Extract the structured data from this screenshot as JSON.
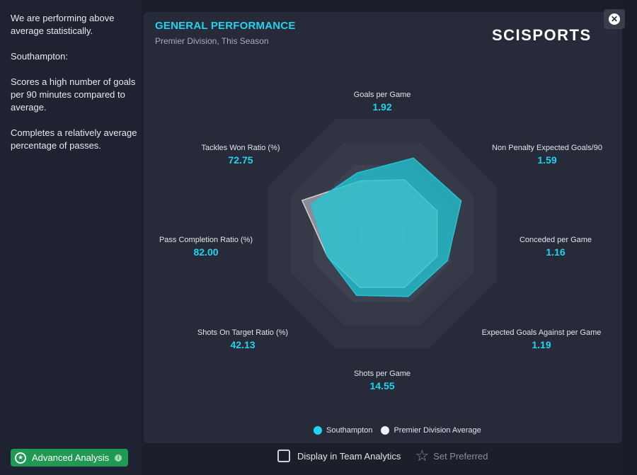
{
  "summary": {
    "para1": "We are performing above average statistically.",
    "para2": "Southampton:",
    "para3": "Scores a high number of goals per 90 minutes compared to average.",
    "para4": "Completes a relatively average percentage of passes."
  },
  "advanced_analysis": {
    "label": "Advanced Analysis"
  },
  "card": {
    "title": "GENERAL PERFORMANCE",
    "subtitle": "Premier Division, This Season",
    "logo": "SCISPORTS"
  },
  "chart_data": {
    "type": "radar",
    "axes": [
      {
        "label": "Goals per Game",
        "value": "1.92"
      },
      {
        "label": "Non Penalty Expected Goals/90",
        "value": "1.59"
      },
      {
        "label": "Conceded per Game",
        "value": "1.16"
      },
      {
        "label": "Expected Goals Against per Game",
        "value": "1.19"
      },
      {
        "label": "Shots per Game",
        "value": "14.55"
      },
      {
        "label": "Shots On Target Ratio (%)",
        "value": "42.13"
      },
      {
        "label": "Pass Completion Ratio (%)",
        "value": "82.00"
      },
      {
        "label": "Tackles Won Ratio (%)",
        "value": "72.75"
      }
    ],
    "series": [
      {
        "name": "Southampton",
        "color": "#22c4d3",
        "values": [
          0.66,
          0.69,
          0.57,
          0.55,
          0.54,
          0.48,
          0.62,
          0.53
        ]
      },
      {
        "name": "Premier Division Average",
        "color": "#d0d2d8",
        "values": [
          0.47,
          0.48,
          0.48,
          0.47,
          0.47,
          0.48,
          0.7,
          0.46
        ]
      }
    ]
  },
  "legend": {
    "series1": "Southampton",
    "series2": "Premier Division Average"
  },
  "footer": {
    "display_label": "Display in Team Analytics",
    "set_preferred": "Set Preferred"
  }
}
